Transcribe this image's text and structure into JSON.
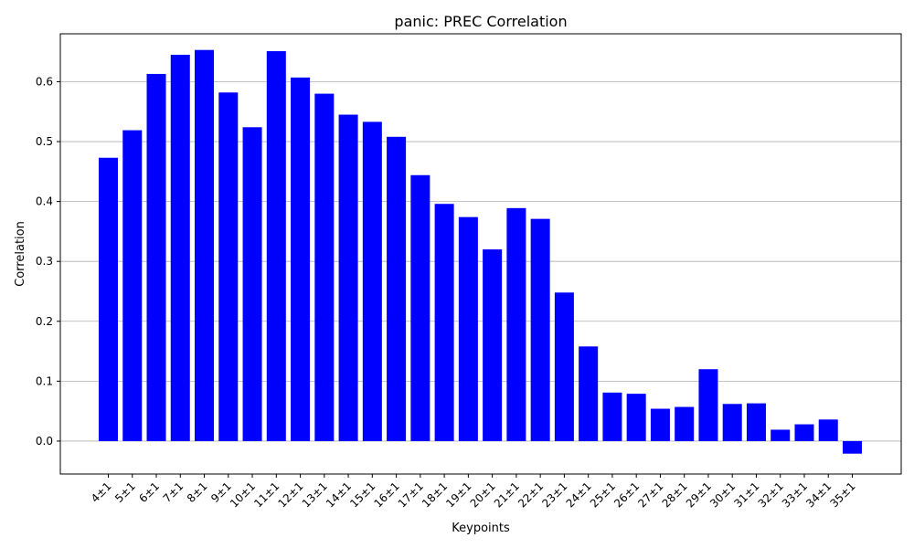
{
  "chart_data": {
    "type": "bar",
    "title": "panic: PREC Correlation",
    "xlabel": "Keypoints",
    "ylabel": "Correlation",
    "categories": [
      "4±1",
      "5±1",
      "6±1",
      "7±1",
      "8±1",
      "9±1",
      "10±1",
      "11±1",
      "12±1",
      "13±1",
      "14±1",
      "15±1",
      "16±1",
      "17±1",
      "18±1",
      "19±1",
      "20±1",
      "21±1",
      "22±1",
      "23±1",
      "24±1",
      "25±1",
      "26±1",
      "27±1",
      "28±1",
      "29±1",
      "30±1",
      "31±1",
      "32±1",
      "33±1",
      "34±1",
      "35±1"
    ],
    "values": [
      0.473,
      0.519,
      0.613,
      0.645,
      0.653,
      0.582,
      0.524,
      0.651,
      0.607,
      0.58,
      0.545,
      0.533,
      0.508,
      0.444,
      0.396,
      0.374,
      0.32,
      0.389,
      0.371,
      0.248,
      0.158,
      0.081,
      0.079,
      0.054,
      0.057,
      0.12,
      0.062,
      0.063,
      0.019,
      0.028,
      0.036,
      -0.021
    ],
    "ylim": [
      -0.055,
      0.68
    ],
    "yticks": [
      "0.0",
      "0.1",
      "0.2",
      "0.3",
      "0.4",
      "0.5",
      "0.6"
    ],
    "grid": "y",
    "bar_color": "#0000ff"
  }
}
